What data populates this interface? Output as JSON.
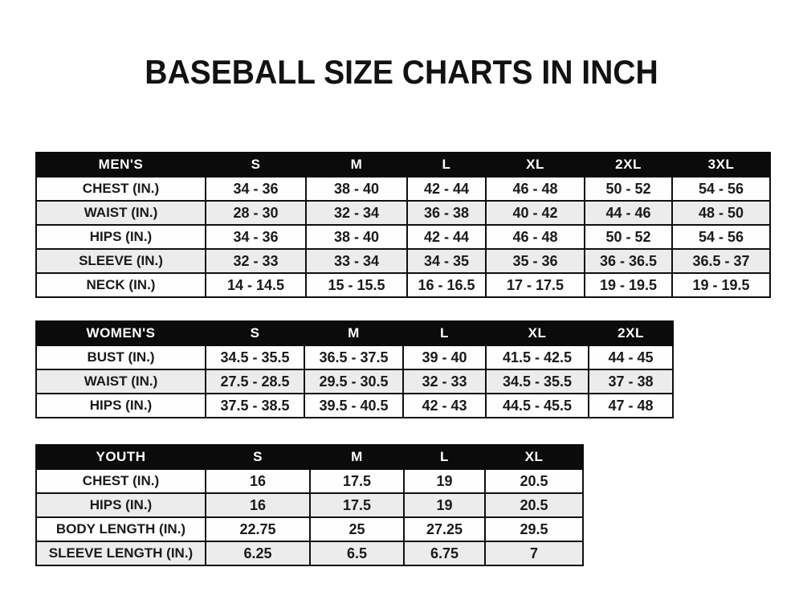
{
  "title": "BASEBALL SIZE CHARTS IN INCH",
  "colors": {
    "header_bg": "#0b0b0b",
    "header_text": "#ffffff",
    "row_alt_bg": "#ececec",
    "border": "#101010",
    "page_bg": "#ffffff"
  },
  "chart_data": [
    {
      "type": "table",
      "title": "MEN'S",
      "columns": [
        "S",
        "M",
        "L",
        "XL",
        "2XL",
        "3XL"
      ],
      "rows": [
        {
          "label": "CHEST (IN.)",
          "values": [
            "34 - 36",
            "38 - 40",
            "42 - 44",
            "46 - 48",
            "50 - 52",
            "54 - 56"
          ]
        },
        {
          "label": "WAIST (IN.)",
          "values": [
            "28 - 30",
            "32 - 34",
            "36 - 38",
            "40 - 42",
            "44 - 46",
            "48 - 50"
          ]
        },
        {
          "label": "HIPS (IN.)",
          "values": [
            "34 - 36",
            "38 - 40",
            "42 - 44",
            "46 - 48",
            "50 - 52",
            "54 - 56"
          ]
        },
        {
          "label": "SLEEVE (IN.)",
          "values": [
            "32 - 33",
            "33 - 34",
            "34 - 35",
            "35 - 36",
            "36 - 36.5",
            "36.5 - 37"
          ]
        },
        {
          "label": "NECK (IN.)",
          "values": [
            "14 - 14.5",
            "15 - 15.5",
            "16 - 16.5",
            "17 - 17.5",
            "19 - 19.5",
            "19 - 19.5"
          ]
        }
      ]
    },
    {
      "type": "table",
      "title": "WOMEN'S",
      "columns": [
        "S",
        "M",
        "L",
        "XL",
        "2XL"
      ],
      "rows": [
        {
          "label": "BUST (IN.)",
          "values": [
            "34.5 - 35.5",
            "36.5 - 37.5",
            "39 - 40",
            "41.5 - 42.5",
            "44 - 45"
          ]
        },
        {
          "label": "WAIST (IN.)",
          "values": [
            "27.5 - 28.5",
            "29.5 - 30.5",
            "32 - 33",
            "34.5 - 35.5",
            "37 - 38"
          ]
        },
        {
          "label": "HIPS (IN.)",
          "values": [
            "37.5 - 38.5",
            "39.5 - 40.5",
            "42 - 43",
            "44.5 - 45.5",
            "47 - 48"
          ]
        }
      ]
    },
    {
      "type": "table",
      "title": "YOUTH",
      "columns": [
        "S",
        "M",
        "L",
        "XL"
      ],
      "rows": [
        {
          "label": "CHEST (IN.)",
          "values": [
            "16",
            "17.5",
            "19",
            "20.5"
          ]
        },
        {
          "label": "HIPS (IN.)",
          "values": [
            "16",
            "17.5",
            "19",
            "20.5"
          ]
        },
        {
          "label": "BODY LENGTH (IN.)",
          "values": [
            "22.75",
            "25",
            "27.25",
            "29.5"
          ]
        },
        {
          "label": "SLEEVE LENGTH (IN.)",
          "values": [
            "6.25",
            "6.5",
            "6.75",
            "7"
          ]
        }
      ]
    }
  ]
}
